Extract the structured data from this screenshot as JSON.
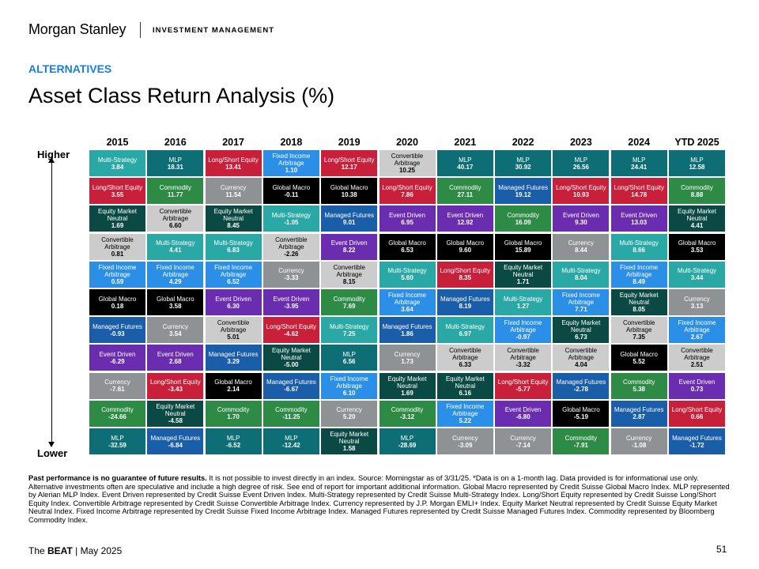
{
  "header": {
    "brand": "Morgan Stanley",
    "division": "INVESTMENT MANAGEMENT",
    "section": "ALTERNATIVES",
    "title": "Asset Class Return Analysis (%)"
  },
  "axis": {
    "higher": "Higher",
    "lower": "Lower"
  },
  "colors": {
    "Multi-Strategy": "#2aa8a5",
    "Long/Short Equity": "#c8203a",
    "Equity Market Neutral": "#0b4a44",
    "Convertible Arbitrage": "#cccccc",
    "Fixed Income Arbitrage": "#2b8fe8",
    "Global Macro": "#000000",
    "Managed Futures": "#1a5da8",
    "Event Driven": "#6a2db0",
    "Currency": "#8e9295",
    "Commodity": "#2e8b46",
    "MLP": "#0d6e75"
  },
  "chart_data": {
    "type": "table",
    "title": "Asset Class Return Analysis (%)",
    "years": [
      "2015",
      "2016",
      "2017",
      "2018",
      "2019",
      "2020",
      "2021",
      "2022",
      "2023",
      "2024",
      "YTD 2025"
    ],
    "columns": [
      [
        [
          "Multi-Strategy",
          "3.84"
        ],
        [
          "Long/Short Equity",
          "3.55"
        ],
        [
          "Equity Market Neutral",
          "1.69"
        ],
        [
          "Convertible Arbitrage",
          "0.81"
        ],
        [
          "Fixed Income Arbitrage",
          "0.59"
        ],
        [
          "Global Macro",
          "0.18"
        ],
        [
          "Managed Futures",
          "-0.93"
        ],
        [
          "Event Driven",
          "-6.29"
        ],
        [
          "Currency",
          "-7.61"
        ],
        [
          "Commodity",
          "-24.66"
        ],
        [
          "MLP",
          "-32.59"
        ]
      ],
      [
        [
          "MLP",
          "18.31"
        ],
        [
          "Commodity",
          "11.77"
        ],
        [
          "Convertible Arbitrage",
          "6.60"
        ],
        [
          "Multi-Strategy",
          "4.41"
        ],
        [
          "Fixed Income Arbitrage",
          "4.29"
        ],
        [
          "Global Macro",
          "3.58"
        ],
        [
          "Currency",
          "3.54"
        ],
        [
          "Event Driven",
          "2.68"
        ],
        [
          "Long/Short Equity",
          "-3.43"
        ],
        [
          "Equity Market Neutral",
          "-4.58"
        ],
        [
          "Managed Futures",
          "-6.84"
        ]
      ],
      [
        [
          "Long/Short Equity",
          "13.41"
        ],
        [
          "Currency",
          "11.54"
        ],
        [
          "Equity Market Neutral",
          "8.45"
        ],
        [
          "Multi-Strategy",
          "6.83"
        ],
        [
          "Fixed Income Arbitrage",
          "6.52"
        ],
        [
          "Event Driven",
          "6.30"
        ],
        [
          "Convertible Arbitrage",
          "5.01"
        ],
        [
          "Managed Futures",
          "3.29"
        ],
        [
          "Global Macro",
          "2.14"
        ],
        [
          "Commodity",
          "1.70"
        ],
        [
          "MLP",
          "-6.52"
        ]
      ],
      [
        [
          "Fixed Income Arbitrage",
          "1.10"
        ],
        [
          "Global Macro",
          "-0.11"
        ],
        [
          "Multi-Strategy",
          "-1.05"
        ],
        [
          "Convertible Arbitrage",
          "-2.26"
        ],
        [
          "Currency",
          "-3.33"
        ],
        [
          "Event Driven",
          "-3.95"
        ],
        [
          "Long/Short Equity",
          "-4.62"
        ],
        [
          "Equity Market Neutral",
          "-5.00"
        ],
        [
          "Managed Futures",
          "-6.67"
        ],
        [
          "Commodity",
          "-11.25"
        ],
        [
          "MLP",
          "-12.42"
        ]
      ],
      [
        [
          "Long/Short Equity",
          "12.17"
        ],
        [
          "Global Macro",
          "10.38"
        ],
        [
          "Managed Futures",
          "9.01"
        ],
        [
          "Event Driven",
          "8.22"
        ],
        [
          "Convertible Arbitrage",
          "8.15"
        ],
        [
          "Commodity",
          "7.69"
        ],
        [
          "Multi-Strategy",
          "7.25"
        ],
        [
          "MLP",
          "6.56"
        ],
        [
          "Fixed Income Arbitrage",
          "6.10"
        ],
        [
          "Currency",
          "5.20"
        ],
        [
          "Equity Market Neutral",
          "1.58"
        ]
      ],
      [
        [
          "Convertible Arbitrage",
          "10.25"
        ],
        [
          "Long/Short Equity",
          "7.86"
        ],
        [
          "Event Driven",
          "6.95"
        ],
        [
          "Global Macro",
          "6.53"
        ],
        [
          "Multi-Strategy",
          "5.60"
        ],
        [
          "Fixed Income Arbitrage",
          "3.64"
        ],
        [
          "Managed Futures",
          "1.86"
        ],
        [
          "Currency",
          "1.73"
        ],
        [
          "Equity Market Neutral",
          "1.69"
        ],
        [
          "Commodity",
          "-3.12"
        ],
        [
          "MLP",
          "-28.69"
        ]
      ],
      [
        [
          "MLP",
          "40.17"
        ],
        [
          "Commodity",
          "27.11"
        ],
        [
          "Event Driven",
          "12.92"
        ],
        [
          "Global Macro",
          "9.60"
        ],
        [
          "Long/Short Equity",
          "8.35"
        ],
        [
          "Managed Futures",
          "8.19"
        ],
        [
          "Multi-Strategy",
          "6.97"
        ],
        [
          "Convertible Arbitrage",
          "6.33"
        ],
        [
          "Equity Market Neutral",
          "6.16"
        ],
        [
          "Fixed Income Arbitrage",
          "5.22"
        ],
        [
          "Currency",
          "-3.09"
        ]
      ],
      [
        [
          "MLP",
          "30.92"
        ],
        [
          "Managed Futures",
          "19.12"
        ],
        [
          "Commodity",
          "16.09"
        ],
        [
          "Global Macro",
          "15.89"
        ],
        [
          "Equity Market Neutral",
          "1.71"
        ],
        [
          "Multi-Strategy",
          "1.27"
        ],
        [
          "Fixed Income Arbitrage",
          "-0.97"
        ],
        [
          "Convertible Arbitrage",
          "-3.32"
        ],
        [
          "Long/Short Equity",
          "-5.77"
        ],
        [
          "Event Driven",
          "-6.80"
        ],
        [
          "Currency",
          "-7.14"
        ]
      ],
      [
        [
          "MLP",
          "26.56"
        ],
        [
          "Long/Short Equity",
          "10.93"
        ],
        [
          "Event Driven",
          "9.30"
        ],
        [
          "Currency",
          "8.44"
        ],
        [
          "Multi-Strategy",
          "8.04"
        ],
        [
          "Fixed Income Arbitrage",
          "7.71"
        ],
        [
          "Equity Market Neutral",
          "6.73"
        ],
        [
          "Convertible Arbitrage",
          "4.04"
        ],
        [
          "Managed Futures",
          "-2.78"
        ],
        [
          "Global Macro",
          "-5.19"
        ],
        [
          "Commodity",
          "-7.91"
        ]
      ],
      [
        [
          "MLP",
          "24.41"
        ],
        [
          "Long/Short Equity",
          "14.78"
        ],
        [
          "Event Driven",
          "13.03"
        ],
        [
          "Multi-Strategy",
          "8.66"
        ],
        [
          "Fixed Income Arbitrage",
          "8.49"
        ],
        [
          "Equity Market Neutral",
          "8.05"
        ],
        [
          "Convertible Arbitrage",
          "7.35"
        ],
        [
          "Global Macro",
          "5.52"
        ],
        [
          "Commodity",
          "5.38"
        ],
        [
          "Managed Futures",
          "2.87"
        ],
        [
          "Currency",
          "-1.08"
        ]
      ],
      [
        [
          "MLP",
          "12.58"
        ],
        [
          "Commodity",
          "8.88"
        ],
        [
          "Equity Market Neutral",
          "4.41"
        ],
        [
          "Global Macro",
          "3.53"
        ],
        [
          "Multi-Strategy",
          "3.44"
        ],
        [
          "Currency",
          "3.13"
        ],
        [
          "Fixed Income Arbitrage",
          "2.67"
        ],
        [
          "Convertible Arbitrage",
          "2.51"
        ],
        [
          "Event Driven",
          "0.73"
        ],
        [
          "Long/Short Equity",
          "0.66"
        ],
        [
          "Managed Futures",
          "-1.72"
        ]
      ]
    ]
  },
  "disclaimer": {
    "bold": "Past performance is no guarantee of future results.",
    "text": " It is not possible to invest directly in an index. Source: Morningstar as of 3/31/25. *Data is on a 1-month lag. Data provided is for informational use only. Alternative investments often are speculative and include a high degree of risk. See end of report for important additional information. Global Macro represented by Credit Suisse Global Macro Index. MLP represented by Alerian MLP Index. Event Driven represented by Credit Suisse Event Driven Index. Multi-Strategy represented by Credit Suisse Multi-Strategy Index. Long/Short Equity represented by Credit Suisse Long/Short Equity Index. Convertible Arbitrage represented by Credit Suisse Convertible Arbitrage Index. Currency represented by J.P. Morgan EMLI+ Index. Equity Market Neutral represented by Credit Suisse Equity Market Neutral Index. Fixed Income Arbitrage represented by Credit Suisse Fixed Income Arbitrage Index. Managed Futures represented by Credit Suisse Managed Futures Index. Commodity represented by Bloomberg Commodity Index."
  },
  "footer": {
    "prefix": "The ",
    "bold": "BEAT",
    "suffix": " | May 2025",
    "page": "51"
  }
}
